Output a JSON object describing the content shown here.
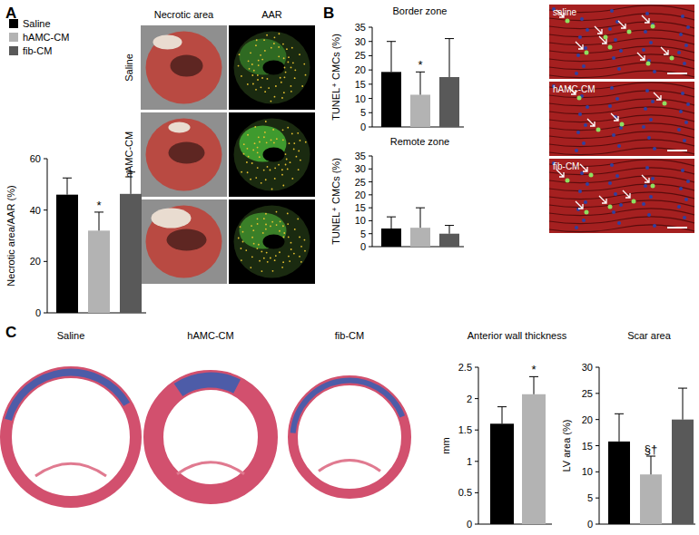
{
  "figure": {
    "panel_labels": [
      "A",
      "B",
      "C"
    ],
    "image_headers": [
      "Necrotic area",
      "AAR"
    ],
    "image_rows": [
      "Saline",
      "hAMC-CM",
      "fib-CM"
    ],
    "micrograph_labels": [
      "saline",
      "hAMC-CM",
      "fib-CM"
    ],
    "histology_labels": [
      "Saline",
      "hAMC-CM",
      "fib-CM"
    ]
  },
  "chart_data": [
    {
      "type": "bar",
      "y_label": "Necrotic area/AAR (%)",
      "categories": [
        "Saline",
        "hAMC-CM",
        "fib-CM"
      ],
      "values": [
        46,
        32,
        46.3
      ],
      "errors": [
        6.5,
        7.2,
        8.5
      ],
      "colors": [
        "#000000",
        "#b3b3b3",
        "#595959"
      ],
      "ylim": [
        0,
        60
      ],
      "yticks": [
        0,
        20,
        40,
        60
      ],
      "legend": "top-left",
      "tick_labels": "y",
      "annotations": [
        {
          "index": 1,
          "text": "*"
        }
      ]
    },
    {
      "type": "bar",
      "title": "Border zone",
      "y_label": "TUNEL⁺ CMCs (%)",
      "values": [
        19.3,
        11.3,
        17.5
      ],
      "errors": [
        10.7,
        8,
        13.5
      ],
      "colors": [
        "#000000",
        "#b3b3b3",
        "#595959"
      ],
      "ylim": [
        0,
        35
      ],
      "yticks": [
        0,
        5,
        10,
        15,
        20,
        25,
        30,
        35
      ],
      "tick_labels": "y",
      "annotations": [
        {
          "index": 1,
          "text": "*"
        }
      ]
    },
    {
      "type": "bar",
      "title": "Remote zone",
      "y_label": "TUNEL⁺ CMCs (%)",
      "values": [
        7,
        7.3,
        5
      ],
      "errors": [
        4.5,
        7.7,
        3.2
      ],
      "colors": [
        "#000000",
        "#b3b3b3",
        "#595959"
      ],
      "ylim": [
        0,
        35
      ],
      "yticks": [
        0,
        5,
        10,
        15,
        20,
        25,
        30,
        35
      ],
      "tick_labels": "y"
    },
    {
      "type": "bar",
      "title": "Anterior wall thickness",
      "y_label": "mm",
      "values": [
        1.6,
        2.07
      ],
      "errors": [
        0.27,
        0.28
      ],
      "colors": [
        "#000000",
        "#b3b3b3"
      ],
      "ylim": [
        0,
        2.5
      ],
      "yticks": [
        0,
        0.5,
        1,
        1.5,
        2,
        2.5
      ],
      "tick_labels": "y",
      "annotations": [
        {
          "index": 1,
          "text": "*"
        }
      ]
    },
    {
      "type": "bar",
      "title": "Scar area",
      "y_label": "LV area (%)",
      "values": [
        15.8,
        9.5,
        20
      ],
      "errors": [
        5.3,
        3.5,
        6
      ],
      "colors": [
        "#000000",
        "#b3b3b3",
        "#595959"
      ],
      "ylim": [
        0,
        30
      ],
      "yticks": [
        0,
        5,
        10,
        15,
        20,
        25,
        30
      ],
      "tick_labels": "y",
      "annotations": [
        {
          "index": 1,
          "text": "§†"
        }
      ]
    }
  ]
}
